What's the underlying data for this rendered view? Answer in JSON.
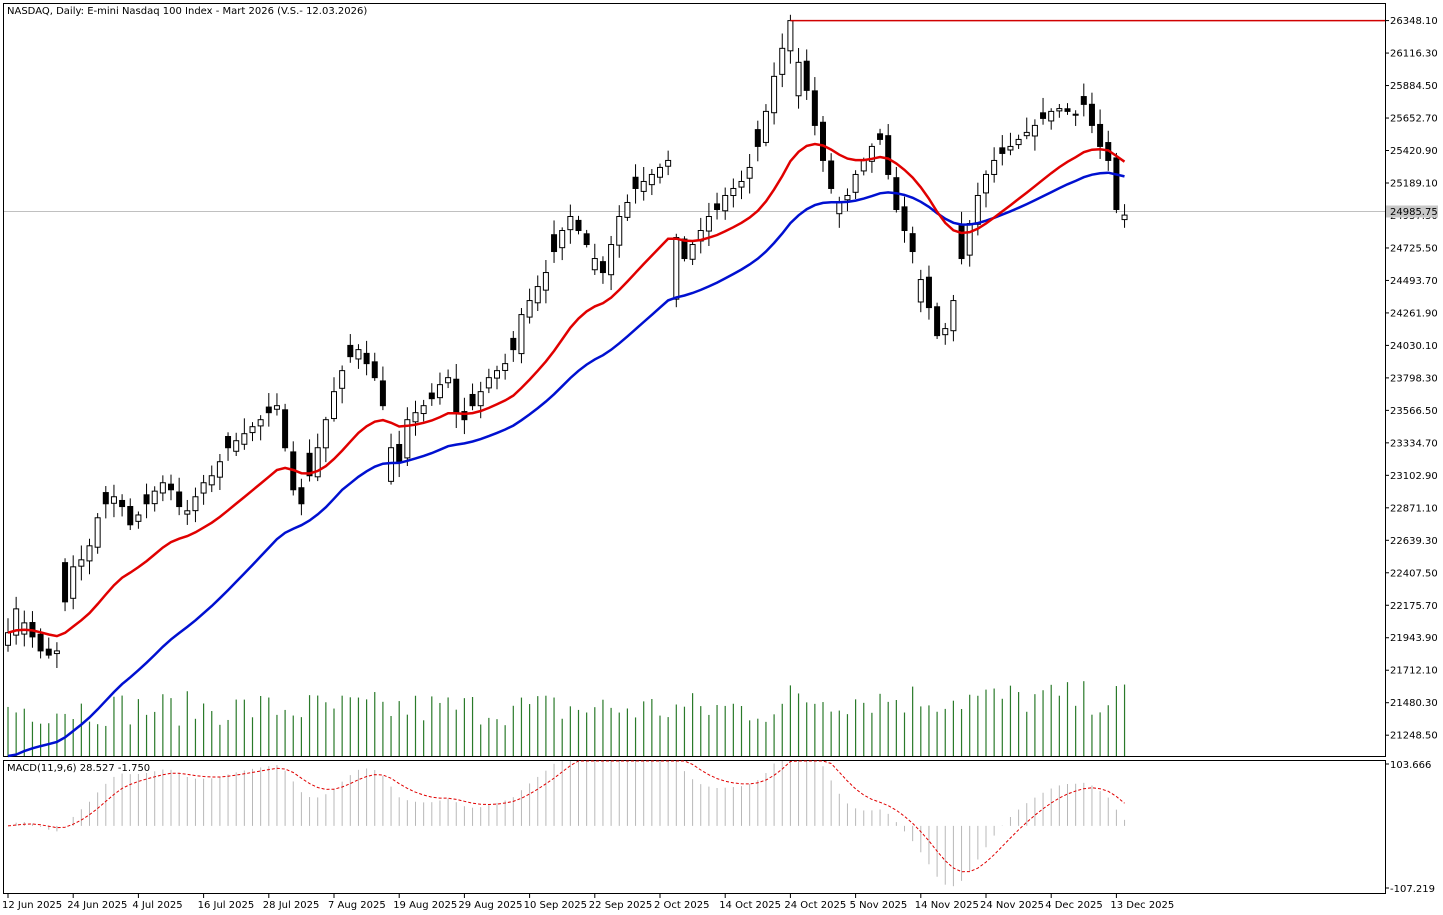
{
  "header": {
    "title": "NASDAQ, Daily:  E-mini Nasdaq 100 Index - Mart 2026 (V.S.- 12.03.2026)"
  },
  "macd_label": "MACD(11,9,6) 28.527 -1.750",
  "colors": {
    "background": "#ffffff",
    "grid": "#c0c0c0",
    "bull_body": "#ffffff",
    "bear_body": "#000000",
    "candle_outline": "#000000",
    "ema_fast": "#e00000",
    "ema_slow": "#0010d0",
    "resistance": "#d00000",
    "volume": "#2a7a2a",
    "macd_hist": "#b8b8b8",
    "macd_signal": "#e00000",
    "current_price_bg": "#c8c8c8"
  },
  "chart_data": {
    "type": "candlestick",
    "price_axis": {
      "ticks": [
        "26348.10",
        "26116.30",
        "25884.50",
        "25652.70",
        "25420.90",
        "25189.10",
        "24957.30",
        "24725.50",
        "24493.70",
        "24261.90",
        "24030.10",
        "23798.30",
        "23566.50",
        "23334.70",
        "23102.90",
        "22871.10",
        "22639.30",
        "22407.50",
        "22175.70",
        "21943.90",
        "21712.10",
        "21480.30",
        "21248.50"
      ],
      "range": [
        21100,
        26470
      ]
    },
    "current_price": "24985.75",
    "resistance_level": 26348.1,
    "macd_axis": {
      "max": "103.666",
      "min": "-107.219"
    },
    "x_axis_labels": [
      {
        "label": "12 Jun 2025",
        "index": 0
      },
      {
        "label": "24 Jun 2025",
        "index": 8
      },
      {
        "label": "4 Jul 2025",
        "index": 16
      },
      {
        "label": "16 Jul 2025",
        "index": 24
      },
      {
        "label": "28 Jul 2025",
        "index": 32
      },
      {
        "label": "7 Aug 2025",
        "index": 40
      },
      {
        "label": "19 Aug 2025",
        "index": 48
      },
      {
        "label": "29 Aug 2025",
        "index": 56
      },
      {
        "label": "10 Sep 2025",
        "index": 64
      },
      {
        "label": "22 Sep 2025",
        "index": 72
      },
      {
        "label": "2 Oct 2025",
        "index": 80
      },
      {
        "label": "14 Oct 2025",
        "index": 88
      },
      {
        "label": "24 Oct 2025",
        "index": 96
      },
      {
        "label": "5 Nov 2025",
        "index": 104
      },
      {
        "label": "14 Nov 2025",
        "index": 112
      },
      {
        "label": "24 Nov 2025",
        "index": 120
      },
      {
        "label": "4 Dec 2025",
        "index": 128
      },
      {
        "label": "13 Dec 2025",
        "index": 136
      }
    ],
    "closes": [
      21980,
      22150,
      22050,
      21950,
      21850,
      21820,
      21850,
      22200,
      22450,
      22500,
      22600,
      22800,
      22900,
      22950,
      22880,
      22750,
      22820,
      22900,
      22990,
      23050,
      23000,
      22880,
      22850,
      22950,
      23050,
      23100,
      23200,
      23300,
      23350,
      23400,
      23450,
      23500,
      23550,
      23600,
      23300,
      23000,
      22900,
      23100,
      23300,
      23500,
      23700,
      23850,
      23950,
      24000,
      23900,
      23800,
      23600,
      23300,
      23200,
      23500,
      23550,
      23600,
      23650,
      23750,
      23800,
      23550,
      23500,
      23600,
      23700,
      23800,
      23850,
      23900,
      24000,
      24250,
      24350,
      24450,
      24550,
      24700,
      24850,
      24950,
      24850,
      24750,
      24650,
      24550,
      24750,
      24950,
      25050,
      25150,
      25200,
      25250,
      25300,
      25350,
      24800,
      24650,
      24750,
      24850,
      24950,
      25000,
      25100,
      25150,
      25200,
      25300,
      25450,
      25700,
      25950,
      26150,
      26348,
      26050,
      25850,
      25600,
      25350,
      25150,
      25050,
      25100,
      25250,
      25350,
      25450,
      25500,
      25250,
      25000,
      24850,
      24700,
      24500,
      24300,
      24100,
      24150,
      24350,
      24650,
      24900,
      25100,
      25250,
      25350,
      25400,
      25450,
      25500,
      25550,
      25600,
      25650,
      25700,
      25720,
      25700,
      25680,
      25750,
      25600,
      25450,
      25350,
      25000,
      24960
    ],
    "ema_fast_color_name": "red moving average",
    "ema_slow_color_name": "blue moving average"
  }
}
